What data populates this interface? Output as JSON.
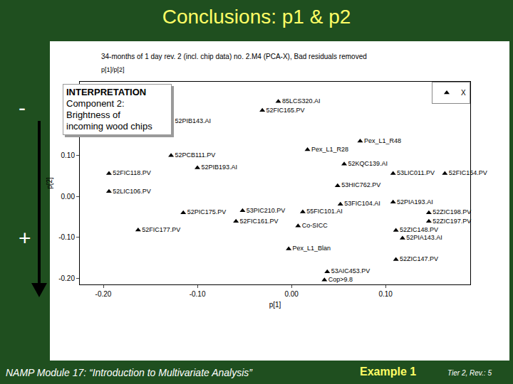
{
  "slide": {
    "title": "Conclusions: p1 & p2",
    "interpretation": [
      "INTERPRETATION",
      "Component 2:",
      "Brightness of",
      "incoming wood chips"
    ],
    "direction": {
      "top": "-",
      "bottom": "+"
    },
    "footer": {
      "module": "NAMP Module 17: “Introduction to Multivariate Analysis”",
      "example": "Example 1",
      "tier": "Tier 2, Rev.: 5"
    }
  },
  "chart_data": {
    "type": "scatter",
    "title": "34-months of 1 day rev. 2 (incl. chip data) no. 2.M4 (PCA-X), Bad residuals removed",
    "subtitle": "p[1]/p[2]",
    "x_label": "p[1]",
    "y_label": "p[2]",
    "series": [
      {
        "name": "X",
        "marker": "triangle-up",
        "color": "#000000",
        "x": [
          -0.014,
          -0.031,
          -0.128,
          -0.128,
          -0.1,
          -0.194,
          -0.194,
          -0.163,
          -0.115,
          -0.059,
          -0.052,
          0.163,
          0.108,
          0.146,
          0.146,
          0.111,
          0.118,
          0.111,
          0.038,
          0.035,
          -0.003,
          0.007,
          0.049,
          0.052,
          0.012,
          0.108,
          0.073,
          0.056,
          0.017
        ],
        "values": [
          0.232,
          0.21,
          0.184,
          0.1,
          0.07,
          0.056,
          0.012,
          -0.082,
          -0.04,
          -0.061,
          -0.035,
          0.056,
          0.056,
          -0.04,
          -0.061,
          -0.083,
          -0.102,
          -0.154,
          -0.184,
          -0.204,
          -0.128,
          -0.072,
          0.026,
          -0.019,
          -0.038,
          -0.014,
          0.135,
          0.079,
          0.114
        ],
        "point_labels": [
          "85LCS320.AI",
          "52FIC165.PV",
          "52PIB143.AI",
          "52PCB111.PV",
          "52PIB193.AI",
          "52FIC118.PV",
          "52LIC106.PV",
          "52FIC177.PV",
          "52PIC175.PV",
          "52FIC161.PV",
          "53PIC210.PV",
          "52FIC154.PV",
          "53LIC011.PV",
          "52ZIC198.PV",
          "52ZIC197.PV",
          "52ZIC148.PV",
          "52PIA143.AI",
          "52ZIC147.PV",
          "53AIC453.PV",
          "Cop>9.8",
          "Pex_L1_Blan",
          "Co-SICC",
          "53HIC762.PV",
          "53FIC104.AI",
          "55FIC101.AI",
          "52PIA193.AI",
          "Pex_L1_R48",
          "52KQC139.AI",
          "Pex_L1_R28"
        ]
      }
    ],
    "xlim": [
      -0.225,
      0.19
    ],
    "xticks": [
      {
        "value": -0.2,
        "label": "-0.20"
      },
      {
        "value": -0.1,
        "label": "-0.10"
      },
      {
        "value": 0,
        "label": "0.00"
      },
      {
        "value": 0.1,
        "label": "0.10"
      }
    ],
    "ylim": [
      -0.215,
      0.28
    ],
    "yticks": [
      {
        "value": -0.2,
        "label": "-0.20"
      },
      {
        "value": -0.1,
        "label": "-0.10"
      },
      {
        "value": 0,
        "label": "0.00"
      },
      {
        "value": 0.1,
        "label": "0.10"
      }
    ],
    "grid": false,
    "legend": "upper right"
  }
}
